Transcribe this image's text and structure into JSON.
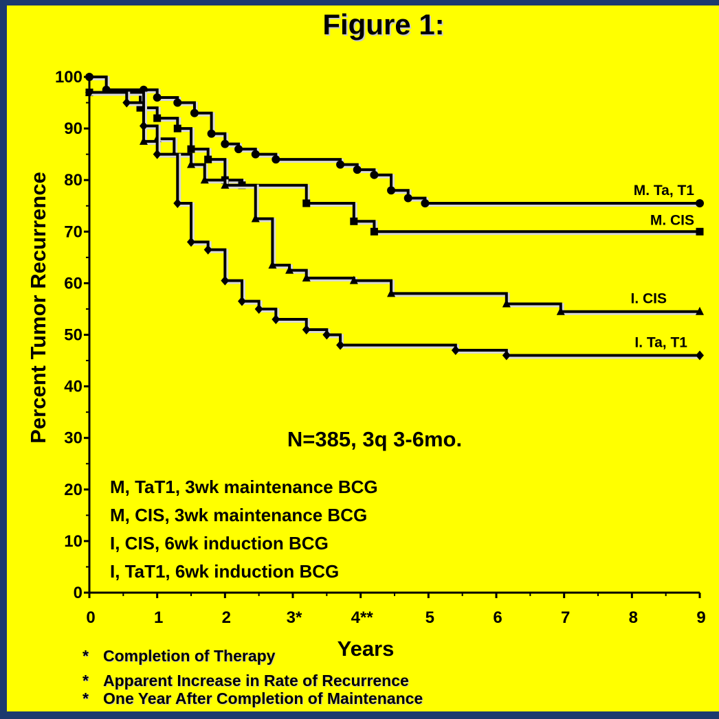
{
  "title": "Figure 1:",
  "chart_data": {
    "type": "line",
    "title": "Figure 1:",
    "xlabel": "Years",
    "ylabel": "Percent Tumor Recurrence",
    "xlim": [
      0,
      9
    ],
    "ylim": [
      0,
      100
    ],
    "x_ticks": [
      "0",
      "1",
      "2",
      "3*",
      "4**",
      "5",
      "6",
      "7",
      "8",
      "9"
    ],
    "y_ticks": [
      "0",
      "10",
      "20",
      "30",
      "40",
      "50",
      "60",
      "70",
      "80",
      "90",
      "100"
    ],
    "annotation": "N=385, 3q 3-6mo.",
    "series": [
      {
        "name": "M. Ta, T1",
        "marker": "circle",
        "points": [
          [
            0,
            100
          ],
          [
            0.25,
            97.5
          ],
          [
            0.8,
            97.5
          ],
          [
            1.0,
            96
          ],
          [
            1.3,
            95
          ],
          [
            1.55,
            93
          ],
          [
            1.8,
            89
          ],
          [
            2.0,
            87
          ],
          [
            2.2,
            86
          ],
          [
            2.45,
            85
          ],
          [
            2.75,
            84
          ],
          [
            3.7,
            83
          ],
          [
            3.95,
            82
          ],
          [
            4.2,
            81
          ],
          [
            4.45,
            78
          ],
          [
            4.7,
            76.5
          ],
          [
            4.95,
            75.5
          ],
          [
            9,
            75.5
          ]
        ]
      },
      {
        "name": "M. CIS",
        "marker": "square",
        "points": [
          [
            0,
            97
          ],
          [
            0.75,
            94
          ],
          [
            1.0,
            92
          ],
          [
            1.3,
            90
          ],
          [
            1.5,
            86
          ],
          [
            1.75,
            84
          ],
          [
            2.0,
            80
          ],
          [
            2.25,
            79
          ],
          [
            3.2,
            75.5
          ],
          [
            3.9,
            72
          ],
          [
            4.2,
            70
          ],
          [
            9,
            70
          ]
        ]
      },
      {
        "name": "I. CIS",
        "marker": "triangle",
        "points": [
          [
            0,
            97
          ],
          [
            0.8,
            87.5
          ],
          [
            1.0,
            88
          ],
          [
            1.25,
            85
          ],
          [
            1.5,
            83
          ],
          [
            1.7,
            80
          ],
          [
            2.0,
            79
          ],
          [
            2.45,
            72.5
          ],
          [
            2.7,
            63.5
          ],
          [
            2.95,
            62.5
          ],
          [
            3.2,
            61
          ],
          [
            3.9,
            60.5
          ],
          [
            4.45,
            58
          ],
          [
            6.15,
            56
          ],
          [
            6.95,
            54.5
          ],
          [
            9,
            54.5
          ]
        ]
      },
      {
        "name": "I. Ta, T1",
        "marker": "diamond",
        "points": [
          [
            0,
            97
          ],
          [
            0.55,
            95
          ],
          [
            0.8,
            90.5
          ],
          [
            1.0,
            85
          ],
          [
            1.3,
            75.5
          ],
          [
            1.5,
            68
          ],
          [
            1.75,
            66.5
          ],
          [
            2.0,
            60.5
          ],
          [
            2.25,
            56.5
          ],
          [
            2.5,
            55
          ],
          [
            2.75,
            53
          ],
          [
            3.2,
            51
          ],
          [
            3.5,
            50
          ],
          [
            3.7,
            48
          ],
          [
            5.4,
            47
          ],
          [
            6.15,
            46
          ],
          [
            9,
            46
          ]
        ]
      }
    ]
  },
  "legend_lines": [
    "M, TaT1, 3wk maintenance BCG",
    "M, CIS, 3wk maintenance BCG",
    "I, CIS, 6wk induction BCG",
    "I, TaT1, 6wk induction BCG"
  ],
  "footnotes": [
    {
      "star": "*",
      "text": "Completion of Therapy"
    },
    {
      "star": "*",
      "text": "Apparent Increase in Rate of Recurrence"
    },
    {
      "star": "*",
      "text": "One Year After Completion of Maintenance"
    }
  ],
  "colors": {
    "background": "#ffff00",
    "border": "#1c3a6e",
    "ink": "#000000"
  }
}
